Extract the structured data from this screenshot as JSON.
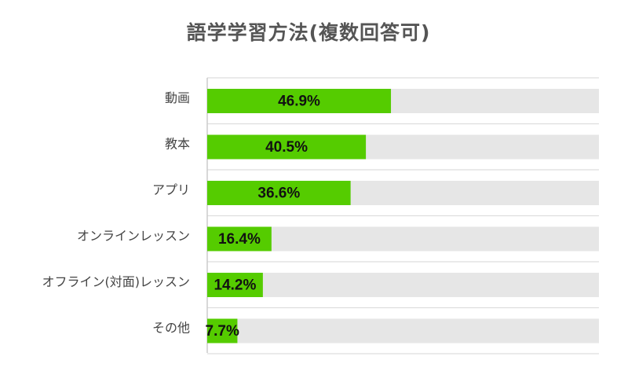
{
  "chart_data": {
    "type": "bar",
    "orientation": "horizontal",
    "title": "語学学習方法(複数回答可)",
    "categories": [
      "動画",
      "教本",
      "アプリ",
      "オンラインレッスン",
      "オフライン(対面)レッスン",
      "その他"
    ],
    "values": [
      46.9,
      40.5,
      36.6,
      16.4,
      14.2,
      7.7
    ],
    "value_labels": [
      "46.9%",
      "40.5%",
      "36.6%",
      "16.4%",
      "14.2%",
      "7.7%"
    ],
    "xlim": [
      0,
      100
    ],
    "bar_color": "#55cc00",
    "track_color": "#e6e6e6",
    "grid": false,
    "legend": "none"
  }
}
